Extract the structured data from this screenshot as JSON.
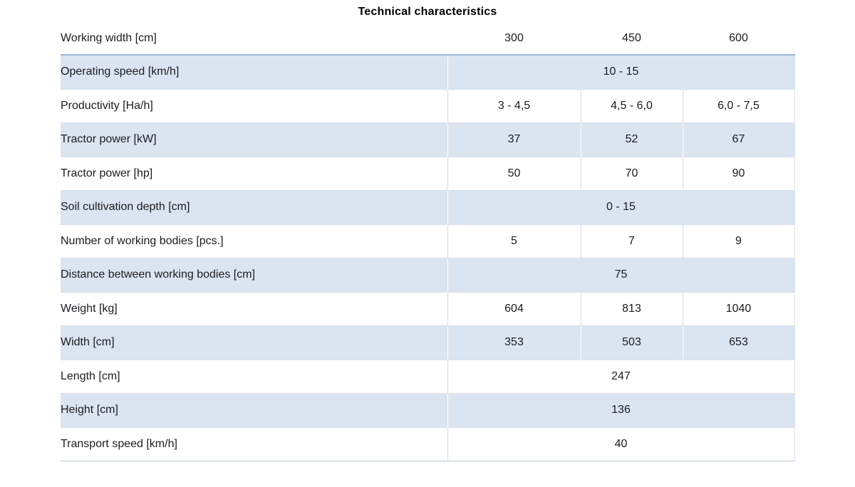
{
  "title": "Technical characteristics",
  "colors": {
    "row_alt_background": "#dbe5f1",
    "header_rule": "#9ab6d6",
    "grid_line": "#d5dce6",
    "grid_line_on_alt": "#ffffff",
    "bottom_rule": "#b9c9d9",
    "text": "#1a1c1f"
  },
  "table": {
    "header": {
      "label": "Working width [cm]",
      "values": [
        "300",
        "450",
        "600"
      ]
    },
    "rows": [
      {
        "label": "Operating speed [km/h]",
        "span": "10 - 15"
      },
      {
        "label": "Productivity [Ha/h]",
        "values": [
          "3 - 4,5",
          "4,5 - 6,0",
          "6,0 - 7,5"
        ]
      },
      {
        "label": "Tractor power [kW]",
        "values": [
          "37",
          "52",
          "67"
        ]
      },
      {
        "label": "Tractor power [hp]",
        "values": [
          "50",
          "70",
          "90"
        ]
      },
      {
        "label": "Soil cultivation depth [cm]",
        "span": "0 - 15"
      },
      {
        "label": "Number of working bodies [pcs.]",
        "values": [
          "5",
          "7",
          "9"
        ]
      },
      {
        "label": "Distance between working bodies [cm]",
        "span": "75"
      },
      {
        "label": "Weight [kg]",
        "values": [
          "604",
          "813",
          "1040"
        ]
      },
      {
        "label": "Width [cm]",
        "values": [
          "353",
          "503",
          "653"
        ]
      },
      {
        "label": "Length [cm]",
        "span": "247"
      },
      {
        "label": "Height [cm]",
        "span": "136"
      },
      {
        "label": "Transport speed [km/h]",
        "span": "40"
      }
    ]
  }
}
